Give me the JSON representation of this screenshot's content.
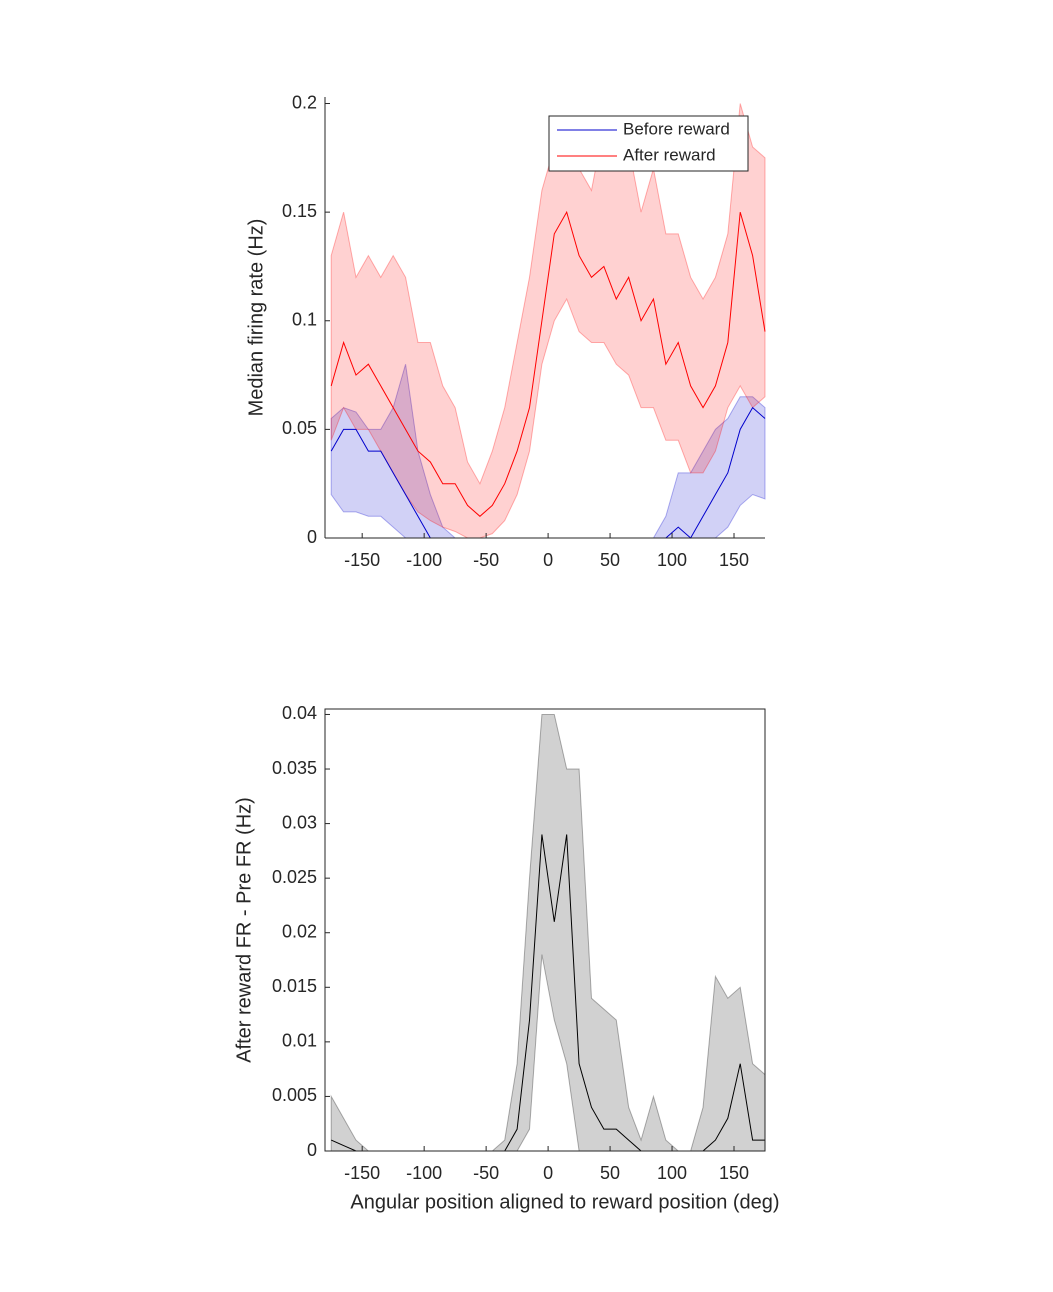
{
  "chart_data": [
    {
      "type": "line",
      "ylabel": "Median firing rate (Hz)",
      "x": [
        -175,
        -165,
        -155,
        -145,
        -135,
        -125,
        -115,
        -105,
        -95,
        -85,
        -75,
        -65,
        -55,
        -45,
        -35,
        -25,
        -15,
        -5,
        5,
        15,
        25,
        35,
        45,
        55,
        65,
        75,
        85,
        95,
        105,
        115,
        125,
        135,
        145,
        155,
        165,
        175
      ],
      "series": [
        {
          "name": "Before reward",
          "color": "#0000cc",
          "values": [
            0.04,
            0.05,
            0.05,
            0.04,
            0.04,
            0.03,
            0.02,
            0.01,
            0,
            0,
            0,
            0,
            0,
            0,
            0,
            0,
            0,
            0,
            0,
            0,
            0,
            0,
            0,
            0,
            0,
            0,
            0,
            0,
            0.005,
            0,
            0.01,
            0.02,
            0.03,
            0.05,
            0.06,
            0.055
          ],
          "lower": [
            0.02,
            0.012,
            0.012,
            0.01,
            0.01,
            0.005,
            0,
            0,
            0,
            0,
            0,
            0,
            0,
            0,
            0,
            0,
            0,
            0,
            0,
            0,
            0,
            0,
            0,
            0,
            0,
            0,
            0,
            0,
            0,
            0,
            0,
            0,
            0.005,
            0.015,
            0.02,
            0.018
          ],
          "upper": [
            0.055,
            0.06,
            0.058,
            0.05,
            0.05,
            0.06,
            0.08,
            0.04,
            0.02,
            0.005,
            0,
            0,
            0,
            0,
            0,
            0,
            0,
            0,
            0,
            0,
            0,
            0,
            0,
            0,
            0,
            0,
            0,
            0.01,
            0.03,
            0.03,
            0.04,
            0.05,
            0.055,
            0.065,
            0.065,
            0.06
          ]
        },
        {
          "name": "After reward",
          "color": "#ff0000",
          "values": [
            0.07,
            0.09,
            0.075,
            0.08,
            0.07,
            0.06,
            0.05,
            0.04,
            0.035,
            0.025,
            0.025,
            0.015,
            0.01,
            0.015,
            0.025,
            0.04,
            0.06,
            0.1,
            0.14,
            0.15,
            0.13,
            0.12,
            0.125,
            0.11,
            0.12,
            0.1,
            0.11,
            0.08,
            0.09,
            0.07,
            0.06,
            0.07,
            0.09,
            0.15,
            0.13,
            0.095
          ],
          "lower": [
            0.045,
            0.06,
            0.05,
            0.05,
            0.04,
            0.03,
            0.02,
            0.012,
            0.008,
            0.005,
            0.003,
            0,
            0,
            0.002,
            0.008,
            0.02,
            0.04,
            0.08,
            0.1,
            0.11,
            0.095,
            0.09,
            0.09,
            0.08,
            0.075,
            0.06,
            0.06,
            0.045,
            0.045,
            0.03,
            0.03,
            0.04,
            0.06,
            0.07,
            0.06,
            0.065
          ],
          "upper": [
            0.13,
            0.15,
            0.12,
            0.13,
            0.12,
            0.13,
            0.12,
            0.09,
            0.09,
            0.07,
            0.06,
            0.035,
            0.025,
            0.04,
            0.06,
            0.09,
            0.12,
            0.16,
            0.18,
            0.19,
            0.17,
            0.16,
            0.19,
            0.17,
            0.18,
            0.15,
            0.17,
            0.14,
            0.14,
            0.12,
            0.11,
            0.12,
            0.14,
            0.2,
            0.18,
            0.175
          ]
        }
      ],
      "xlim": [
        -180,
        175
      ],
      "ylim": [
        0,
        0.203
      ],
      "xticks": [
        -150,
        -100,
        -50,
        0,
        50,
        100,
        150
      ],
      "yticks": [
        0,
        0.05,
        0.1,
        0.15,
        0.2
      ],
      "box": false,
      "legend": "northeast"
    },
    {
      "type": "line",
      "ylabel": "After reward FR - Pre FR (Hz)",
      "xlabel": "Angular position aligned to reward position (deg)",
      "x": [
        -175,
        -165,
        -155,
        -145,
        -135,
        -125,
        -115,
        -105,
        -95,
        -85,
        -75,
        -65,
        -55,
        -45,
        -35,
        -25,
        -15,
        -5,
        5,
        15,
        25,
        35,
        45,
        55,
        65,
        75,
        85,
        95,
        105,
        115,
        125,
        135,
        145,
        155,
        165,
        175
      ],
      "series": [
        {
          "color": "#000000",
          "values": [
            0.001,
            0.0005,
            0,
            0,
            0,
            0,
            0,
            0,
            0,
            0,
            0,
            0,
            0,
            0,
            0,
            0.002,
            0.012,
            0.029,
            0.021,
            0.029,
            0.008,
            0.004,
            0.002,
            0.002,
            0.001,
            0,
            0,
            0,
            0,
            0,
            0,
            0.001,
            0.003,
            0.008,
            0.001,
            0.001
          ],
          "lower": [
            0,
            0,
            0,
            0,
            0,
            0,
            0,
            0,
            0,
            0,
            0,
            0,
            0,
            0,
            0,
            0,
            0.002,
            0.018,
            0.012,
            0.008,
            0,
            0,
            0,
            0,
            0,
            0,
            0,
            0,
            0,
            0,
            0,
            0,
            0,
            0,
            0,
            0
          ],
          "upper": [
            0.005,
            0.003,
            0.001,
            0,
            0,
            0,
            0,
            0,
            0,
            0,
            0,
            0,
            0,
            0,
            0.001,
            0.008,
            0.025,
            0.04,
            0.04,
            0.035,
            0.035,
            0.014,
            0.013,
            0.012,
            0.004,
            0.001,
            0.005,
            0.001,
            0,
            0,
            0.004,
            0.016,
            0.014,
            0.015,
            0.008,
            0.007
          ]
        }
      ],
      "xlim": [
        -180,
        175
      ],
      "ylim": [
        0,
        0.0405
      ],
      "xticks": [
        -150,
        -100,
        -50,
        0,
        50,
        100,
        150
      ],
      "yticks": [
        0,
        0.005,
        0.01,
        0.015,
        0.02,
        0.025,
        0.03,
        0.035,
        0.04
      ],
      "box": true
    }
  ]
}
